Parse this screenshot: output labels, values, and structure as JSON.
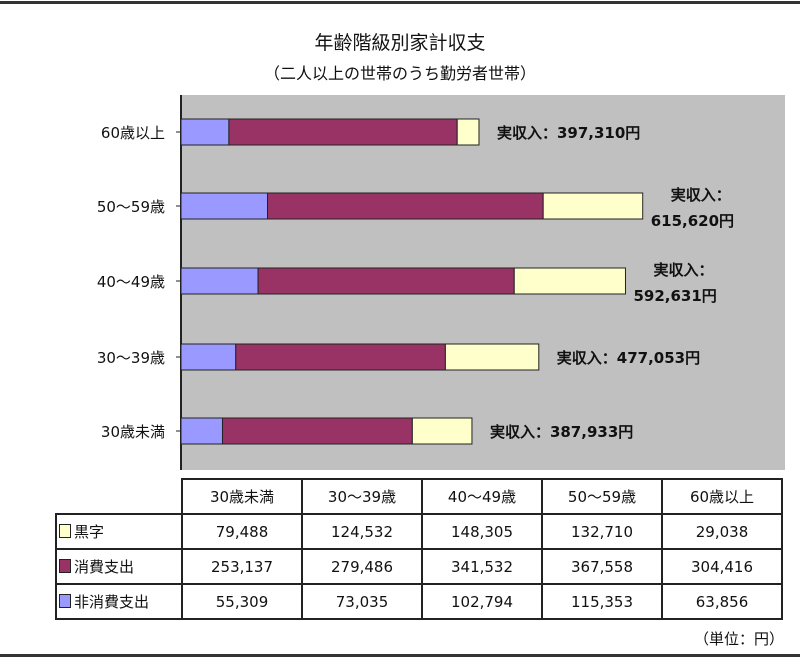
{
  "chart_data": {
    "type": "bar",
    "orientation": "horizontal",
    "stacked": true,
    "title": "年齢階級別家計収支",
    "subtitle": "（二人以上の世帯のうち勤労者世帯）",
    "categories": [
      "30歳未満",
      "30〜39歳",
      "40〜49歳",
      "50〜59歳",
      "60歳以上"
    ],
    "series": [
      {
        "name": "非消費支出",
        "color": "#9999ff",
        "values": [
          55309,
          73035,
          102794,
          115353,
          63856
        ]
      },
      {
        "name": "消費支出",
        "color": "#993366",
        "values": [
          253137,
          279486,
          341532,
          367558,
          304416
        ]
      },
      {
        "name": "黒字",
        "color": "#ffffcc",
        "values": [
          79488,
          124532,
          148305,
          132710,
          29038
        ]
      }
    ],
    "annotations": [
      {
        "line1": "実収入：387,933円",
        "line2": ""
      },
      {
        "line1": "実収入：477,053円",
        "line2": ""
      },
      {
        "line1": "実収入：",
        "line2": "592,631円"
      },
      {
        "line1": "実収入：",
        "line2": "615,620円"
      },
      {
        "line1": "実収入：397,310円",
        "line2": ""
      }
    ],
    "plot_background": "#c0c0c0",
    "grid": false,
    "legend": "data-table-below"
  },
  "table": {
    "headers": [
      "30歳未満",
      "30〜39歳",
      "40〜49歳",
      "50〜59歳",
      "60歳以上"
    ],
    "rows": [
      {
        "label": "黒字",
        "color": "#ffffcc",
        "values": [
          "79,488",
          "124,532",
          "148,305",
          "132,710",
          "29,038"
        ]
      },
      {
        "label": "消費支出",
        "color": "#993366",
        "values": [
          "253,137",
          "279,486",
          "341,532",
          "367,558",
          "304,416"
        ]
      },
      {
        "label": "非消費支出",
        "color": "#9999ff",
        "values": [
          "55,309",
          "73,035",
          "102,794",
          "115,353",
          "63,856"
        ]
      }
    ]
  },
  "unit": "（単位：円）"
}
